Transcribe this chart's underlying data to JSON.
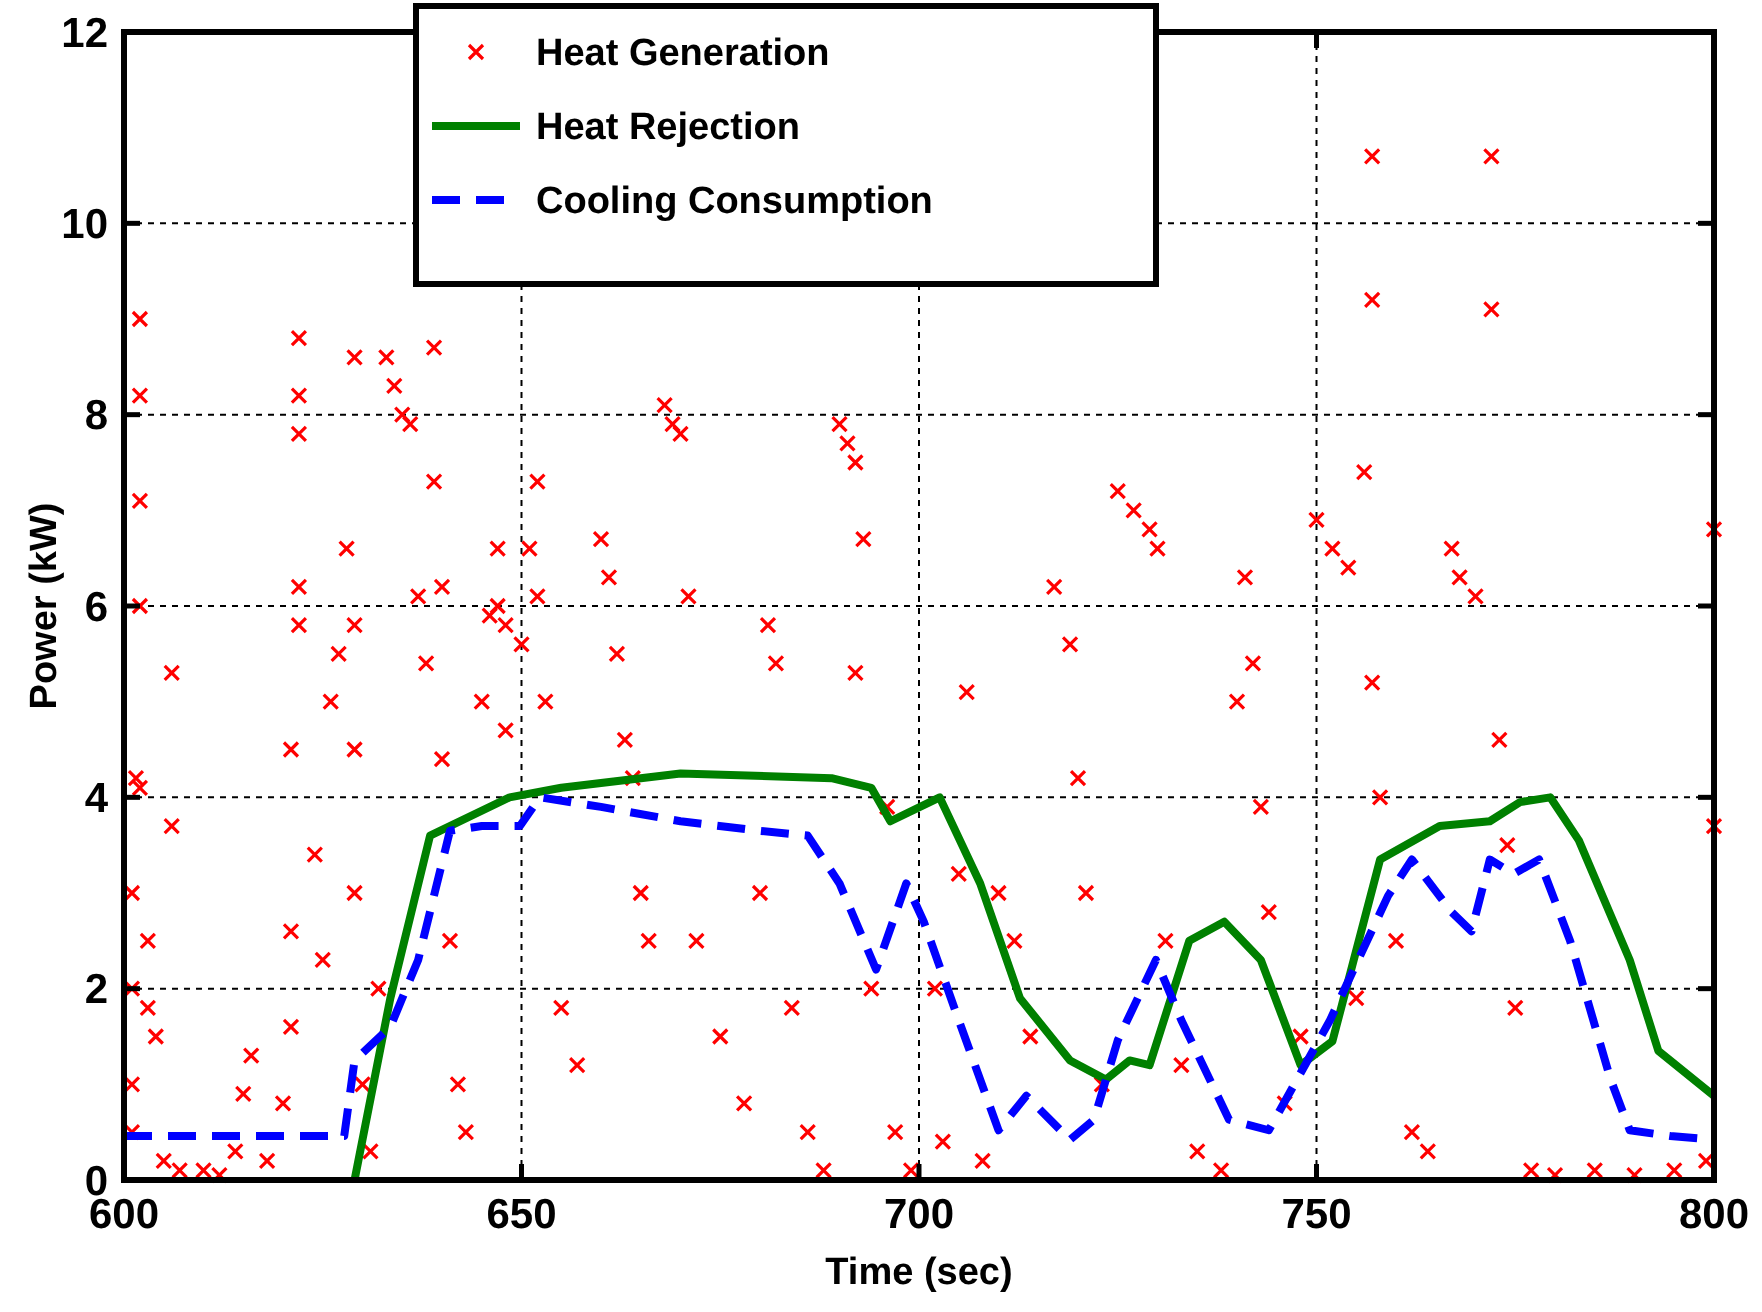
{
  "chart_data": {
    "type": "line",
    "xlabel": "Time (sec)",
    "ylabel": "Power (kW)",
    "xlim": [
      600,
      800
    ],
    "ylim": [
      0,
      12
    ],
    "xticks": [
      600,
      650,
      700,
      750,
      800
    ],
    "yticks": [
      0,
      2,
      4,
      6,
      8,
      10,
      12
    ],
    "grid": true,
    "legend": "top",
    "series": [
      {
        "name": "Heat Generation",
        "type": "scatter",
        "marker": "cross",
        "color": "#ff0000",
        "x": [
          601,
          601,
          601,
          601,
          601.5,
          602,
          602,
          602,
          602,
          602,
          603,
          603,
          604,
          605,
          606,
          606,
          607,
          610,
          612,
          614,
          615,
          616,
          618,
          620,
          621,
          621,
          621,
          622,
          622,
          622,
          622,
          622,
          624,
          625,
          626,
          627,
          628,
          629,
          629,
          629,
          629,
          630,
          631,
          632,
          633,
          634,
          635,
          636,
          637,
          638,
          639,
          639,
          640,
          640,
          641,
          642,
          643,
          645,
          646,
          647,
          647,
          648,
          648,
          650,
          651,
          652,
          652,
          653,
          655,
          657,
          660,
          661,
          662,
          663,
          664,
          665,
          666,
          668,
          669,
          670,
          671,
          672,
          675,
          678,
          680,
          681,
          682,
          684,
          686,
          688,
          690,
          691,
          692,
          692,
          693,
          694,
          696,
          697,
          699,
          702,
          703,
          705,
          706,
          708,
          710,
          712,
          714,
          717,
          719,
          720,
          721,
          723,
          725,
          727,
          729,
          730,
          731,
          733,
          735,
          738,
          740,
          741,
          742,
          743,
          744,
          746,
          748,
          750,
          752,
          754,
          755,
          756,
          757,
          757,
          757,
          758,
          760,
          762,
          764,
          767,
          768,
          770,
          772,
          772,
          773,
          774,
          775,
          777,
          780,
          785,
          790,
          795,
          799,
          800,
          800
        ],
        "values": [
          0.5,
          1.0,
          2.0,
          3.0,
          4.2,
          4.1,
          6.0,
          7.1,
          8.2,
          9.0,
          2.5,
          1.8,
          1.5,
          0.2,
          3.7,
          5.3,
          0.1,
          0.1,
          0.05,
          0.3,
          0.9,
          1.3,
          0.2,
          0.8,
          1.6,
          2.6,
          4.5,
          5.8,
          6.2,
          7.8,
          8.2,
          8.8,
          3.4,
          2.3,
          5.0,
          5.5,
          6.6,
          8.6,
          5.8,
          4.5,
          3.0,
          1.0,
          0.3,
          2.0,
          8.6,
          8.3,
          8.0,
          7.9,
          6.1,
          5.4,
          8.7,
          7.3,
          6.2,
          4.4,
          2.5,
          1.0,
          0.5,
          5.0,
          5.9,
          6.6,
          6.0,
          5.8,
          4.7,
          5.6,
          6.6,
          7.3,
          6.1,
          5.0,
          1.8,
          1.2,
          6.7,
          6.3,
          5.5,
          4.6,
          4.2,
          3.0,
          2.5,
          8.1,
          7.9,
          7.8,
          6.1,
          2.5,
          1.5,
          0.8,
          3.0,
          5.8,
          5.4,
          1.8,
          0.5,
          0.1,
          7.9,
          7.7,
          7.5,
          5.3,
          6.7,
          2.0,
          3.9,
          0.5,
          0.1,
          2.0,
          0.4,
          3.2,
          5.1,
          0.2,
          3.0,
          2.5,
          1.5,
          6.2,
          5.6,
          4.2,
          3.0,
          1.0,
          7.2,
          7.0,
          6.8,
          6.6,
          2.5,
          1.2,
          0.3,
          0.1,
          5.0,
          6.3,
          5.4,
          3.9,
          2.8,
          0.8,
          1.5,
          6.9,
          6.6,
          6.4,
          1.9,
          7.4,
          10.7,
          9.2,
          5.2,
          4.0,
          2.5,
          0.5,
          0.3,
          6.6,
          6.3,
          6.1,
          10.7,
          9.1,
          4.6,
          3.5,
          1.8,
          0.1,
          0.05,
          0.1,
          0.05,
          0.1,
          0.2,
          6.8,
          3.7
        ]
      },
      {
        "name": "Heat Rejection",
        "line_style": "solid",
        "color": "#008000",
        "x": [
          629,
          633.5,
          638.5,
          648.5,
          655,
          670,
          689,
          694,
          696.4,
          702.6,
          707.7,
          712.7,
          719,
          723.5,
          726.5,
          729,
          734,
          738.4,
          743,
          748,
          752,
          758,
          765.5,
          771.8,
          775.6,
          779.4,
          783,
          789.4,
          793,
          800
        ],
        "values": [
          0,
          1.9,
          3.6,
          4.0,
          4.1,
          4.25,
          4.2,
          4.1,
          3.75,
          4.0,
          3.1,
          1.9,
          1.25,
          1.05,
          1.25,
          1.2,
          2.5,
          2.7,
          2.3,
          1.2,
          1.45,
          3.35,
          3.7,
          3.75,
          3.95,
          4.0,
          3.55,
          2.3,
          1.35,
          0.88
        ]
      },
      {
        "name": "Cooling Consumption",
        "line_style": "dashed",
        "color": "#0000ff",
        "x": [
          600,
          627.7,
          629,
          633.5,
          637,
          641,
          645,
          649.8,
          652.3,
          660,
          670,
          680,
          686,
          690,
          694.6,
          698.4,
          700.6,
          705,
          710,
          713.5,
          719,
          722,
          725,
          729.8,
          733,
          739,
          744,
          751.7,
          759,
          762,
          767,
          769.5,
          771.8,
          774.8,
          778,
          781.9,
          787,
          789.4,
          794.5,
          800
        ],
        "values": [
          0.46,
          0.46,
          1.25,
          1.6,
          2.3,
          3.65,
          3.7,
          3.7,
          4.0,
          3.9,
          3.75,
          3.65,
          3.6,
          3.1,
          2.2,
          3.1,
          2.7,
          1.67,
          0.52,
          0.88,
          0.42,
          0.63,
          1.46,
          2.3,
          1.67,
          0.63,
          0.52,
          1.67,
          2.97,
          3.35,
          2.8,
          2.6,
          3.35,
          3.2,
          3.35,
          2.5,
          1.05,
          0.52,
          0.46,
          0.42
        ]
      }
    ]
  }
}
